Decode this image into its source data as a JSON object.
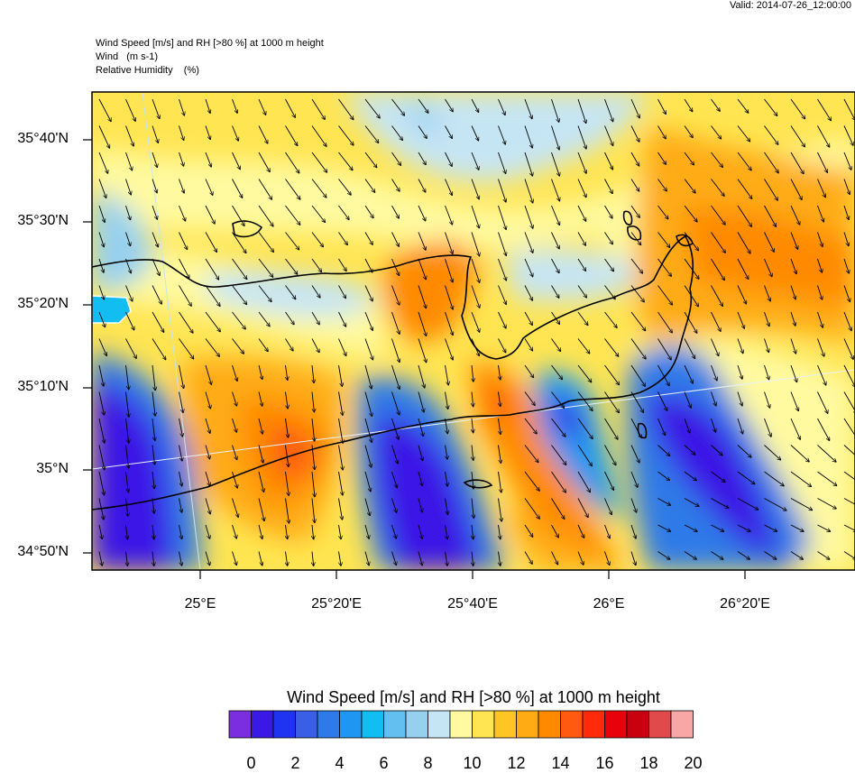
{
  "valid_label": "Valid: 2014-07-26_12:00:00",
  "header": {
    "line1": "Wind Speed [m/s] and RH [>80 %] at 1000 m height",
    "line2": "Wind   (m s-1)",
    "line3": "Relative Humidity    (%)"
  },
  "axes": {
    "lat_labels": [
      "35°40'N",
      "35°30'N",
      "35°20'N",
      "35°10'N",
      "35°N",
      "34°50'N"
    ],
    "lon_labels": [
      "25°E",
      "25°20'E",
      "25°40'E",
      "26°E",
      "26°20'E"
    ]
  },
  "colorbar": {
    "title": "Wind Speed [m/s] and RH [>80 %] at 1000 m height",
    "labels": [
      "0",
      "2",
      "4",
      "6",
      "8",
      "10",
      "12",
      "14",
      "16",
      "18",
      "20"
    ],
    "colors": [
      "#7b2ee0",
      "#3a18e6",
      "#1f34f0",
      "#3a5ee6",
      "#2e7ae8",
      "#1e96f2",
      "#12bdf2",
      "#62bff0",
      "#96d0ef",
      "#c6e5f4",
      "#fffaa0",
      "#ffe552",
      "#ffc525",
      "#ffab14",
      "#ff8a00",
      "#ff5a10",
      "#ff2a0a",
      "#e8000a",
      "#c80010",
      "#e04a4a",
      "#f9a6a6"
    ]
  },
  "legend_meaning": {
    "low_speed_color": "#3a18e6",
    "high_speed_color": "#e8000a"
  }
}
